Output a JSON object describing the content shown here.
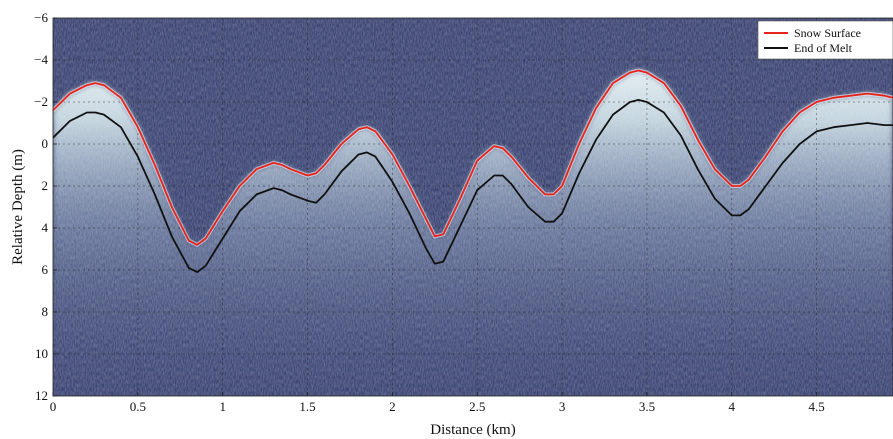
{
  "chart_data": {
    "type": "line",
    "xlabel": "Distance (km)",
    "ylabel": "Relative Depth (m)",
    "xlim": [
      0,
      4.95
    ],
    "ylim": [
      12,
      -6
    ],
    "y_axis_inverted": true,
    "grid": true,
    "legend_placement": "top-right",
    "background": "radargram",
    "x_ticks": [
      "0",
      "0.5",
      "1",
      "1.5",
      "2",
      "2.5",
      "3",
      "3.5",
      "4",
      "4.5"
    ],
    "y_ticks": [
      "−6",
      "−4",
      "−2",
      "0",
      "2",
      "4",
      "6",
      "8",
      "10",
      "12"
    ],
    "series": [
      {
        "name": "Snow Surface",
        "color": "#e8231c",
        "x": [
          0,
          0.1,
          0.2,
          0.25,
          0.3,
          0.4,
          0.5,
          0.6,
          0.7,
          0.8,
          0.85,
          0.9,
          1.0,
          1.1,
          1.2,
          1.3,
          1.35,
          1.4,
          1.5,
          1.55,
          1.6,
          1.7,
          1.8,
          1.85,
          1.9,
          2.0,
          2.1,
          2.2,
          2.25,
          2.3,
          2.4,
          2.5,
          2.6,
          2.65,
          2.7,
          2.8,
          2.9,
          2.95,
          3.0,
          3.1,
          3.2,
          3.3,
          3.4,
          3.45,
          3.5,
          3.6,
          3.7,
          3.8,
          3.9,
          4.0,
          4.05,
          4.1,
          4.2,
          4.3,
          4.4,
          4.5,
          4.6,
          4.7,
          4.8,
          4.9,
          4.95
        ],
        "y": [
          -1.6,
          -2.4,
          -2.8,
          -2.9,
          -2.8,
          -2.2,
          -0.8,
          1.0,
          3.0,
          4.6,
          4.8,
          4.5,
          3.2,
          2.0,
          1.2,
          0.9,
          1.0,
          1.2,
          1.5,
          1.4,
          1.0,
          0.0,
          -0.7,
          -0.8,
          -0.6,
          0.5,
          2.0,
          3.6,
          4.4,
          4.3,
          2.6,
          0.8,
          0.1,
          0.2,
          0.6,
          1.6,
          2.4,
          2.4,
          2.0,
          0.0,
          -1.7,
          -2.9,
          -3.4,
          -3.5,
          -3.4,
          -2.9,
          -1.8,
          -0.2,
          1.2,
          2.0,
          2.0,
          1.7,
          0.6,
          -0.6,
          -1.5,
          -2.0,
          -2.2,
          -2.3,
          -2.4,
          -2.3,
          -2.2
        ]
      },
      {
        "name": "End of Melt",
        "color": "#111111",
        "x": [
          0,
          0.1,
          0.2,
          0.25,
          0.3,
          0.4,
          0.5,
          0.6,
          0.7,
          0.8,
          0.85,
          0.9,
          1.0,
          1.1,
          1.2,
          1.3,
          1.35,
          1.4,
          1.5,
          1.55,
          1.6,
          1.7,
          1.8,
          1.85,
          1.9,
          2.0,
          2.1,
          2.2,
          2.25,
          2.3,
          2.4,
          2.5,
          2.6,
          2.65,
          2.7,
          2.8,
          2.9,
          2.95,
          3.0,
          3.1,
          3.2,
          3.3,
          3.4,
          3.45,
          3.5,
          3.6,
          3.7,
          3.8,
          3.9,
          4.0,
          4.05,
          4.1,
          4.2,
          4.3,
          4.4,
          4.5,
          4.6,
          4.7,
          4.8,
          4.9,
          4.95
        ],
        "y": [
          -0.3,
          -1.1,
          -1.5,
          -1.5,
          -1.4,
          -0.8,
          0.6,
          2.4,
          4.4,
          5.9,
          6.1,
          5.8,
          4.5,
          3.2,
          2.4,
          2.1,
          2.2,
          2.4,
          2.7,
          2.8,
          2.4,
          1.3,
          0.5,
          0.4,
          0.6,
          1.8,
          3.3,
          5.0,
          5.7,
          5.6,
          3.9,
          2.2,
          1.5,
          1.5,
          1.9,
          3.0,
          3.7,
          3.7,
          3.3,
          1.4,
          -0.2,
          -1.4,
          -2.0,
          -2.1,
          -2.0,
          -1.5,
          -0.4,
          1.2,
          2.6,
          3.4,
          3.4,
          3.1,
          2.0,
          0.9,
          0.0,
          -0.6,
          -0.8,
          -0.9,
          -1.0,
          -0.9,
          -0.9
        ]
      }
    ]
  }
}
